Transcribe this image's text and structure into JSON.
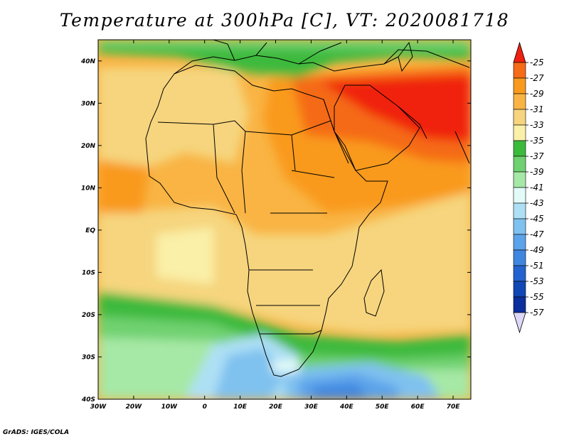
{
  "title": "Temperature at 300hPa [C], VT: 2020081718",
  "credit": "GrADS: IGES/COLA",
  "map": {
    "lon_range": [
      -30,
      75
    ],
    "lat_range": [
      -40,
      45
    ],
    "x_ticks": [
      {
        "lon": -30,
        "label": "30W"
      },
      {
        "lon": -20,
        "label": "20W"
      },
      {
        "lon": -10,
        "label": "10W"
      },
      {
        "lon": 0,
        "label": "0"
      },
      {
        "lon": 10,
        "label": "10E"
      },
      {
        "lon": 20,
        "label": "20E"
      },
      {
        "lon": 30,
        "label": "30E"
      },
      {
        "lon": 40,
        "label": "40E"
      },
      {
        "lon": 50,
        "label": "50E"
      },
      {
        "lon": 60,
        "label": "60E"
      },
      {
        "lon": 70,
        "label": "70E"
      }
    ],
    "y_ticks": [
      {
        "lat": 40,
        "label": "40N"
      },
      {
        "lat": 30,
        "label": "30N"
      },
      {
        "lat": 20,
        "label": "20N"
      },
      {
        "lat": 10,
        "label": "10N"
      },
      {
        "lat": 0,
        "label": "EQ"
      },
      {
        "lat": -10,
        "label": "10S"
      },
      {
        "lat": -20,
        "label": "20S"
      },
      {
        "lat": -30,
        "label": "30S"
      },
      {
        "lat": -40,
        "label": "40S"
      }
    ]
  },
  "colorbar": {
    "levels": [
      "-25",
      "-27",
      "-29",
      "-31",
      "-33",
      "-35",
      "-37",
      "-39",
      "-41",
      "-43",
      "-45",
      "-47",
      "-49",
      "-51",
      "-53",
      "-55",
      "-57"
    ],
    "colors": [
      "#f02010",
      "#f56b16",
      "#f99a1c",
      "#f9b444",
      "#f6d57e",
      "#faf0a8",
      "#3cba3c",
      "#6fd16f",
      "#a6e8a6",
      "#e3fbf8",
      "#aee0f5",
      "#7fc1ef",
      "#5ba3ea",
      "#3f86e0",
      "#2363cf",
      "#1146b5",
      "#0b2f9c",
      "#071f80",
      "#ddd8f8"
    ]
  }
}
